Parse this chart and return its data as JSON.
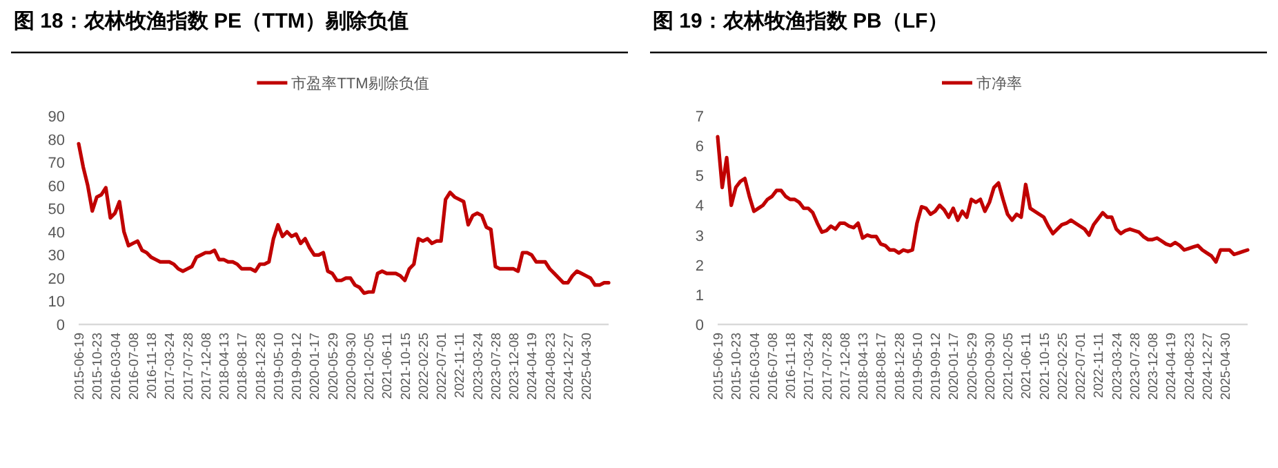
{
  "chart_data": [
    {
      "type": "line",
      "title": "图 18：农林牧渔指数 PE（TTM）剔除负值",
      "legend": "top",
      "ylim": [
        0,
        90
      ],
      "yticks": [
        0,
        10,
        20,
        30,
        40,
        50,
        60,
        70,
        80,
        90
      ],
      "categories": [
        "2015-06-19",
        null,
        null,
        null,
        "2015-10-23",
        null,
        null,
        null,
        "2016-03-04",
        null,
        null,
        null,
        "2016-07-08",
        null,
        null,
        null,
        "2016-11-18",
        null,
        null,
        null,
        "2017-03-24",
        null,
        null,
        null,
        "2017-07-28",
        null,
        null,
        null,
        "2017-12-08",
        null,
        null,
        null,
        "2018-04-13",
        null,
        null,
        null,
        "2018-08-17",
        null,
        null,
        null,
        "2018-12-28",
        null,
        null,
        null,
        "2019-05-10",
        null,
        null,
        null,
        "2019-09-12",
        null,
        null,
        null,
        "2020-01-17",
        null,
        null,
        null,
        "2020-05-29",
        null,
        null,
        null,
        "2020-09-30",
        null,
        null,
        null,
        "2021-02-05",
        null,
        null,
        null,
        "2021-06-11",
        null,
        null,
        null,
        "2021-10-15",
        null,
        null,
        null,
        "2022-02-25",
        null,
        null,
        null,
        "2022-07-01",
        null,
        null,
        null,
        "2022-11-11",
        null,
        null,
        null,
        "2023-03-24",
        null,
        null,
        null,
        "2023-07-28",
        null,
        null,
        null,
        "2023-12-08",
        null,
        null,
        null,
        "2024-04-19",
        null,
        null,
        null,
        "2024-08-23",
        null,
        null,
        null,
        "2024-12-27",
        null,
        null,
        null,
        "2025-04-30",
        null,
        null,
        null,
        null,
        null
      ],
      "series": [
        {
          "name": "市盈率TTM剔除负值",
          "color": "#c00000",
          "values": [
            78,
            68,
            60,
            49,
            55,
            56,
            59,
            46,
            48,
            53,
            40,
            34,
            35,
            36,
            32,
            31,
            29,
            28,
            27,
            27,
            27,
            26,
            24,
            23,
            24,
            25,
            29,
            30,
            31,
            31,
            32,
            28,
            28,
            27,
            27,
            26,
            24,
            24,
            24,
            23,
            26,
            26,
            27,
            37,
            43,
            38,
            40,
            38,
            39,
            35,
            37,
            33,
            30,
            30,
            31,
            23,
            22,
            19,
            19,
            20,
            20,
            17,
            16,
            13.5,
            14,
            14,
            22,
            23,
            22,
            22,
            22,
            21,
            19,
            24,
            26,
            37,
            36,
            37,
            35,
            36,
            36,
            54,
            57,
            55,
            54,
            53,
            43,
            47,
            48,
            47,
            42,
            41,
            25,
            24,
            24,
            24,
            24,
            23,
            31,
            31,
            30,
            27,
            27,
            27,
            24,
            22,
            20,
            18,
            18,
            21,
            23,
            22,
            21,
            20,
            17,
            17,
            18,
            18
          ]
        }
      ]
    },
    {
      "type": "line",
      "title": "图 19：农林牧渔指数 PB（LF）",
      "legend": "top",
      "ylim": [
        0,
        7
      ],
      "yticks": [
        0,
        1,
        2,
        3,
        4,
        5,
        6,
        7
      ],
      "categories": [
        "2015-06-19",
        null,
        null,
        null,
        "2015-10-23",
        null,
        null,
        null,
        "2016-03-04",
        null,
        null,
        null,
        "2016-07-08",
        null,
        null,
        null,
        "2016-11-18",
        null,
        null,
        null,
        "2017-03-24",
        null,
        null,
        null,
        "2017-07-28",
        null,
        null,
        null,
        "2017-12-08",
        null,
        null,
        null,
        "2018-04-13",
        null,
        null,
        null,
        "2018-08-17",
        null,
        null,
        null,
        "2018-12-28",
        null,
        null,
        null,
        "2019-05-10",
        null,
        null,
        null,
        "2019-09-12",
        null,
        null,
        null,
        "2020-01-17",
        null,
        null,
        null,
        "2020-05-29",
        null,
        null,
        null,
        "2020-09-30",
        null,
        null,
        null,
        "2021-02-05",
        null,
        null,
        null,
        "2021-06-11",
        null,
        null,
        null,
        "2021-10-15",
        null,
        null,
        null,
        "2022-02-25",
        null,
        null,
        null,
        "2022-07-01",
        null,
        null,
        null,
        "2022-11-11",
        null,
        null,
        null,
        "2023-03-24",
        null,
        null,
        null,
        "2023-07-28",
        null,
        null,
        null,
        "2023-12-08",
        null,
        null,
        null,
        "2024-04-19",
        null,
        null,
        null,
        "2024-08-23",
        null,
        null,
        null,
        "2024-12-27",
        null,
        null,
        null,
        "2025-04-30",
        null,
        null,
        null,
        null,
        null
      ],
      "series": [
        {
          "name": "市净率",
          "color": "#c00000",
          "values": [
            6.3,
            4.6,
            5.6,
            4.0,
            4.6,
            4.8,
            4.9,
            4.3,
            3.8,
            3.9,
            4.0,
            4.2,
            4.3,
            4.5,
            4.5,
            4.3,
            4.2,
            4.2,
            4.1,
            3.9,
            3.9,
            3.75,
            3.4,
            3.1,
            3.15,
            3.3,
            3.2,
            3.4,
            3.4,
            3.3,
            3.25,
            3.4,
            2.9,
            3.0,
            2.95,
            2.95,
            2.7,
            2.65,
            2.5,
            2.5,
            2.4,
            2.5,
            2.45,
            2.5,
            3.4,
            3.95,
            3.9,
            3.7,
            3.8,
            4.0,
            3.85,
            3.6,
            3.9,
            3.5,
            3.8,
            3.6,
            4.2,
            4.1,
            4.2,
            3.8,
            4.1,
            4.6,
            4.75,
            4.2,
            3.7,
            3.5,
            3.7,
            3.6,
            4.7,
            3.9,
            3.8,
            3.7,
            3.6,
            3.3,
            3.05,
            3.2,
            3.35,
            3.4,
            3.5,
            3.4,
            3.3,
            3.2,
            3.0,
            3.35,
            3.55,
            3.75,
            3.6,
            3.6,
            3.2,
            3.05,
            3.15,
            3.2,
            3.15,
            3.1,
            2.95,
            2.85,
            2.85,
            2.9,
            2.8,
            2.7,
            2.65,
            2.75,
            2.65,
            2.5,
            2.55,
            2.6,
            2.65,
            2.5,
            2.4,
            2.3,
            2.1,
            2.5,
            2.5,
            2.5,
            2.35,
            2.4,
            2.45,
            2.5
          ]
        }
      ]
    }
  ]
}
